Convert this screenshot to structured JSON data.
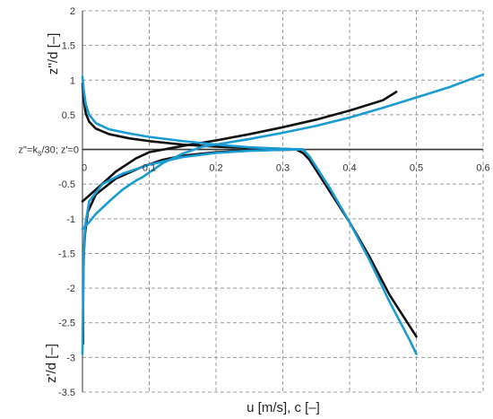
{
  "chart_data": {
    "type": "line",
    "xlabel": "u [m/s], c [–]",
    "ylabel_upper": "z''/d [–]",
    "ylabel_lower": "z'/d [–]",
    "zero_line_label": "z''=ks/30; z'=0",
    "zero_line_label_parts": {
      "pre": "z''=k",
      "sub": "s",
      "post": "/30; z'=0"
    },
    "xlim": [
      0,
      0.6
    ],
    "ylim": [
      -3.5,
      2
    ],
    "x_ticks": [
      0,
      0.1,
      0.2,
      0.3,
      0.4,
      0.5,
      0.6
    ],
    "x_tick_labels": [
      "0",
      "0.1",
      "0.2",
      "0.3",
      "0.4",
      "0.5",
      "0.6"
    ],
    "y_ticks": [
      2,
      1.5,
      1,
      0.5,
      0,
      -0.5,
      -1,
      -1.5,
      -2,
      -2.5,
      -3,
      -3.5
    ],
    "y_tick_labels": [
      "2",
      "1.5",
      "1",
      "0.5",
      "z''=ks/30; z'=0",
      "-0.5",
      "-1",
      "-1.5",
      "-2",
      "-2.5",
      "-3",
      "-3.5"
    ],
    "grid": true,
    "legend": "none",
    "colors": {
      "black": "#111111",
      "blue": "#1a9bd1",
      "grid": "#9a9a9a"
    },
    "series": [
      {
        "color": "black",
        "points": [
          [
            0.0,
            0.95
          ],
          [
            0.002,
            0.7
          ],
          [
            0.005,
            0.52
          ],
          [
            0.01,
            0.4
          ],
          [
            0.02,
            0.3
          ],
          [
            0.04,
            0.22
          ],
          [
            0.07,
            0.16
          ],
          [
            0.1,
            0.12
          ],
          [
            0.15,
            0.07
          ],
          [
            0.2,
            0.04
          ],
          [
            0.25,
            0.02
          ],
          [
            0.3,
            0.01
          ],
          [
            0.32,
            0.0
          ]
        ]
      },
      {
        "color": "black",
        "points": [
          [
            0.0,
            -0.75
          ],
          [
            0.02,
            -0.58
          ],
          [
            0.05,
            -0.32
          ],
          [
            0.08,
            -0.13
          ],
          [
            0.1,
            -0.04
          ],
          [
            0.15,
            0.05
          ],
          [
            0.2,
            0.13
          ],
          [
            0.25,
            0.22
          ],
          [
            0.3,
            0.32
          ],
          [
            0.35,
            0.43
          ],
          [
            0.4,
            0.56
          ],
          [
            0.45,
            0.71
          ],
          [
            0.47,
            0.83
          ]
        ]
      },
      {
        "color": "black",
        "points": [
          [
            0.001,
            -2.8
          ],
          [
            0.001,
            -2.0
          ],
          [
            0.002,
            -1.5
          ],
          [
            0.004,
            -1.2
          ],
          [
            0.008,
            -0.9
          ],
          [
            0.02,
            -0.65
          ],
          [
            0.05,
            -0.42
          ],
          [
            0.09,
            -0.25
          ],
          [
            0.12,
            -0.15
          ],
          [
            0.15,
            -0.09
          ],
          [
            0.2,
            -0.04
          ],
          [
            0.25,
            -0.015
          ],
          [
            0.3,
            -0.005
          ],
          [
            0.33,
            0.0
          ]
        ]
      },
      {
        "color": "black",
        "points": [
          [
            0.32,
            0.0
          ],
          [
            0.33,
            -0.05
          ],
          [
            0.34,
            -0.15
          ],
          [
            0.35,
            -0.3
          ],
          [
            0.37,
            -0.6
          ],
          [
            0.4,
            -1.05
          ],
          [
            0.43,
            -1.55
          ],
          [
            0.46,
            -2.1
          ],
          [
            0.49,
            -2.55
          ],
          [
            0.5,
            -2.7
          ]
        ]
      },
      {
        "color": "blue",
        "points": [
          [
            0.0,
            1.05
          ],
          [
            0.002,
            0.85
          ],
          [
            0.005,
            0.65
          ],
          [
            0.01,
            0.5
          ],
          [
            0.02,
            0.38
          ],
          [
            0.04,
            0.29
          ],
          [
            0.07,
            0.23
          ],
          [
            0.1,
            0.18
          ],
          [
            0.15,
            0.12
          ],
          [
            0.2,
            0.07
          ],
          [
            0.25,
            0.03
          ],
          [
            0.3,
            0.01
          ],
          [
            0.33,
            0.0
          ]
        ]
      },
      {
        "color": "blue",
        "points": [
          [
            0.0,
            -1.15
          ],
          [
            0.01,
            -1.05
          ],
          [
            0.02,
            -0.93
          ],
          [
            0.04,
            -0.75
          ],
          [
            0.06,
            -0.58
          ],
          [
            0.08,
            -0.45
          ],
          [
            0.09,
            -0.4
          ]
        ]
      },
      {
        "color": "blue",
        "points": [
          [
            0.09,
            -0.4
          ],
          [
            0.12,
            -0.2
          ],
          [
            0.15,
            -0.06
          ],
          [
            0.18,
            0.04
          ],
          [
            0.2,
            0.07
          ],
          [
            0.25,
            0.15
          ],
          [
            0.3,
            0.24
          ],
          [
            0.35,
            0.34
          ],
          [
            0.4,
            0.46
          ],
          [
            0.45,
            0.6
          ],
          [
            0.5,
            0.75
          ],
          [
            0.55,
            0.9
          ],
          [
            0.6,
            1.08
          ]
        ]
      },
      {
        "color": "blue",
        "points": [
          [
            0.0,
            -2.95
          ],
          [
            0.001,
            -2.2
          ],
          [
            0.002,
            -1.5
          ],
          [
            0.004,
            -1.1
          ],
          [
            0.01,
            -0.75
          ],
          [
            0.03,
            -0.5
          ],
          [
            0.06,
            -0.35
          ],
          [
            0.1,
            -0.22
          ],
          [
            0.15,
            -0.11
          ],
          [
            0.2,
            -0.05
          ],
          [
            0.25,
            -0.02
          ],
          [
            0.3,
            -0.005
          ],
          [
            0.33,
            0.0
          ]
        ]
      },
      {
        "color": "blue",
        "points": [
          [
            0.33,
            0.0
          ],
          [
            0.34,
            -0.1
          ],
          [
            0.35,
            -0.25
          ],
          [
            0.37,
            -0.55
          ],
          [
            0.4,
            -1.05
          ],
          [
            0.43,
            -1.6
          ],
          [
            0.46,
            -2.2
          ],
          [
            0.49,
            -2.75
          ],
          [
            0.5,
            -2.95
          ]
        ]
      }
    ]
  }
}
